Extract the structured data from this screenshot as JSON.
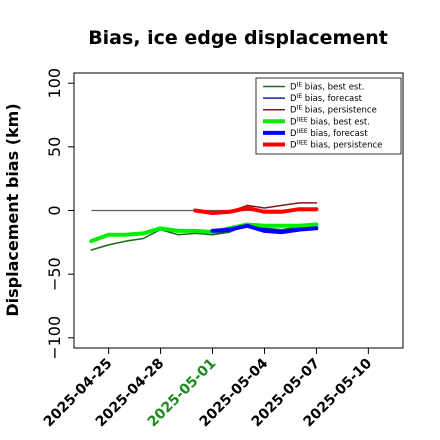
{
  "chart_data": {
    "type": "line",
    "title": "Bias, ice edge displacement",
    "xlabel": "",
    "ylabel": "Displacement bias (km)",
    "ylim": [
      -108,
      108
    ],
    "xlim": [
      "2025-04-23",
      "2025-05-12"
    ],
    "yticks": [
      -100,
      -50,
      0,
      50,
      100
    ],
    "ytick_labels": [
      "−100",
      "−50",
      "0",
      "50",
      "100"
    ],
    "xticks": [
      "2025-04-25",
      "2025-04-28",
      "2025-05-01",
      "2025-05-04",
      "2025-05-07",
      "2025-05-10"
    ],
    "highlight_tick": "2025-05-01",
    "grid": false,
    "legend_position": "top-right",
    "zero_line": {
      "x": [
        "2025-04-24",
        "2025-05-07"
      ],
      "y": 0,
      "color": "#606060"
    },
    "series": [
      {
        "prefix": "D",
        "sup": "IE",
        "suffix": " bias, best est.",
        "color": "#1a6b1a",
        "width": 1.5,
        "x": [
          "2025-04-24",
          "2025-04-25",
          "2025-04-26",
          "2025-04-27",
          "2025-04-28",
          "2025-04-29",
          "2025-04-30",
          "2025-05-01",
          "2025-05-02",
          "2025-05-03",
          "2025-05-04",
          "2025-05-05",
          "2025-05-06",
          "2025-05-07"
        ],
        "y": [
          -31,
          -27,
          -24,
          -22,
          -15,
          -19,
          -18,
          -19,
          -17,
          -11,
          -14,
          -15,
          -13,
          -11
        ]
      },
      {
        "prefix": "D",
        "sup": "IE",
        "suffix": " bias, forecast",
        "color": "#1f1fa0",
        "width": 1.5,
        "x": [
          "2025-05-01",
          "2025-05-02",
          "2025-05-03",
          "2025-05-04",
          "2025-05-05",
          "2025-05-06",
          "2025-05-07"
        ],
        "y": [
          -18,
          -16,
          -12,
          -14,
          -16,
          -14,
          -13
        ]
      },
      {
        "prefix": "D",
        "sup": "IE",
        "suffix": " bias, persistence",
        "color": "#7a1a1a",
        "width": 1.5,
        "x": [
          "2025-04-30",
          "2025-05-01",
          "2025-05-02",
          "2025-05-03",
          "2025-05-04",
          "2025-05-05",
          "2025-05-06",
          "2025-05-07"
        ],
        "y": [
          0,
          -3,
          -1,
          4,
          2,
          4,
          6,
          6
        ]
      },
      {
        "prefix": "D",
        "sup": "IIEE",
        "suffix": " bias, best est.",
        "color": "#00ee00",
        "width": 4,
        "x": [
          "2025-04-24",
          "2025-04-25",
          "2025-04-26",
          "2025-04-27",
          "2025-04-28",
          "2025-04-29",
          "2025-04-30",
          "2025-05-01",
          "2025-05-02",
          "2025-05-03",
          "2025-05-04",
          "2025-05-05",
          "2025-05-06",
          "2025-05-07"
        ],
        "y": [
          -24,
          -19,
          -19,
          -18,
          -14,
          -16,
          -16,
          -17,
          -14,
          -11,
          -12,
          -12,
          -12,
          -11
        ]
      },
      {
        "prefix": "D",
        "sup": "IIEE",
        "suffix": " bias, forecast",
        "color": "#0000ff",
        "width": 4,
        "x": [
          "2025-05-01",
          "2025-05-02",
          "2025-05-03",
          "2025-05-04",
          "2025-05-05",
          "2025-05-06",
          "2025-05-07"
        ],
        "y": [
          -16,
          -15,
          -12,
          -16,
          -17,
          -15,
          -14
        ]
      },
      {
        "prefix": "D",
        "sup": "IIEE",
        "suffix": " bias, persistence",
        "color": "#ff0000",
        "width": 4,
        "x": [
          "2025-04-30",
          "2025-05-01",
          "2025-05-02",
          "2025-05-03",
          "2025-05-04",
          "2025-05-05",
          "2025-05-06",
          "2025-05-07"
        ],
        "y": [
          0,
          -2,
          -1,
          2,
          -1,
          -1,
          1,
          1
        ]
      }
    ]
  }
}
